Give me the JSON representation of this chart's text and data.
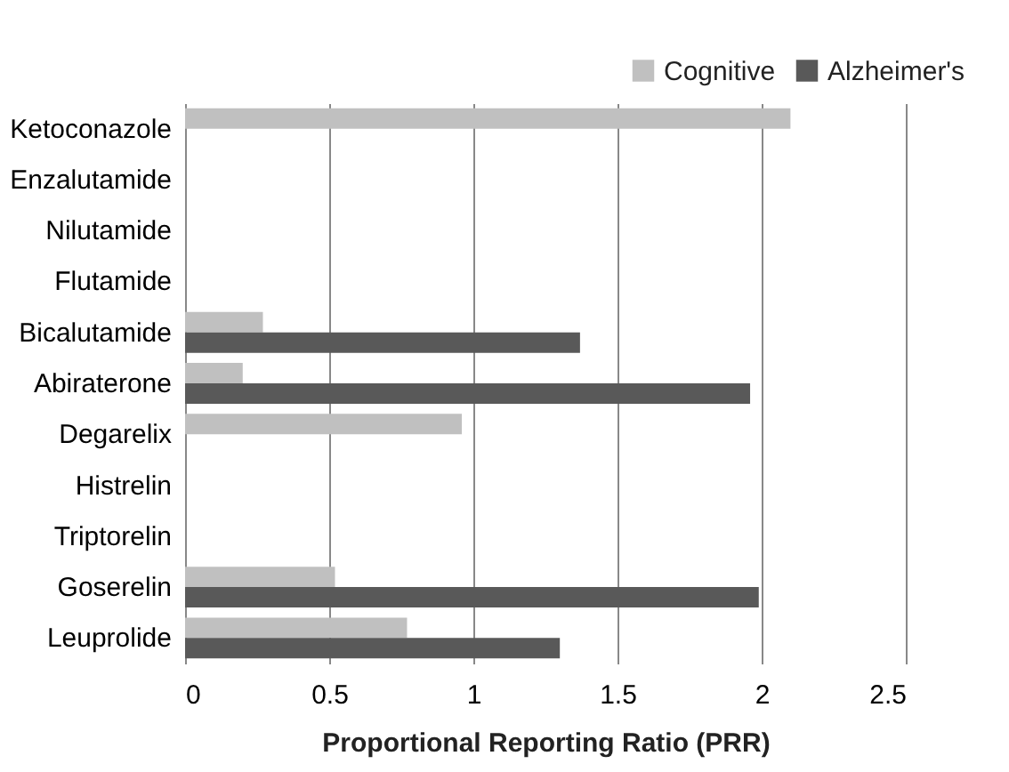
{
  "chart_data": {
    "type": "bar",
    "orientation": "horizontal",
    "xlabel": "Proportional Reporting Ratio (PRR)",
    "categories": [
      "Ketoconazole",
      "Enzalutamide",
      "Nilutamide",
      "Flutamide",
      "Bicalutamide",
      "Abiraterone",
      "Degarelix",
      "Histrelin",
      "Triptorelin",
      "Goserelin",
      "Leuprolide"
    ],
    "series": [
      {
        "name": "Cognitive",
        "color": "#c0c0c0",
        "values": [
          2.1,
          null,
          null,
          null,
          0.27,
          0.2,
          0.96,
          null,
          null,
          0.52,
          0.77
        ]
      },
      {
        "name": "Alzheimer's",
        "color": "#595959",
        "values": [
          null,
          null,
          null,
          null,
          1.37,
          1.96,
          null,
          null,
          null,
          1.99,
          1.3
        ]
      }
    ],
    "xlim": [
      0,
      2.5
    ],
    "xticks": [
      0,
      0.5,
      1,
      1.5,
      2,
      2.5
    ],
    "grid": "x",
    "legend": "top right"
  }
}
